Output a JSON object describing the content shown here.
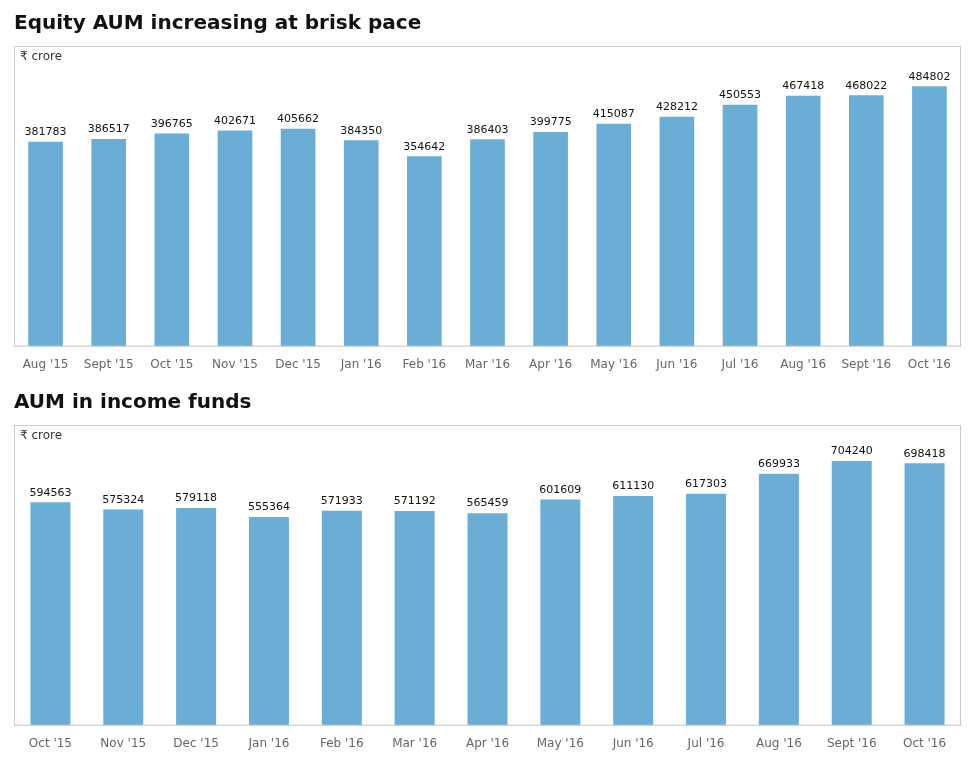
{
  "chart_data": [
    {
      "type": "bar",
      "title": "Equity AUM increasing at brisk pace",
      "ylabel": "₹ crore",
      "categories": [
        "Aug '15",
        "Sept '15",
        "Oct '15",
        "Nov '15",
        "Dec '15",
        "Jan '16",
        "Feb '16",
        "Mar '16",
        "Apr '16",
        "May '16",
        "Jun '16",
        "Jul '16",
        "Aug '16",
        "Sept '16",
        "Oct '16"
      ],
      "values": [
        381783,
        386517,
        396765,
        402671,
        405662,
        384350,
        354642,
        386403,
        399775,
        415087,
        428212,
        450553,
        467418,
        468022,
        484802
      ],
      "color": "#6aaed6",
      "ylim": [
        0,
        560000
      ],
      "grid": false,
      "data_labels": true,
      "tick_labels": "x"
    },
    {
      "type": "bar",
      "title": "AUM in income funds",
      "ylabel": "₹ crore",
      "categories": [
        "Oct '15",
        "Nov '15",
        "Dec '15",
        "Jan '16",
        "Feb '16",
        "Mar '16",
        "Apr '16",
        "May '16",
        "Jun '16",
        "Jul '16",
        "Aug '16",
        "Sept '16",
        "Oct '16"
      ],
      "values": [
        594563,
        575324,
        579118,
        555364,
        571933,
        571192,
        565459,
        601609,
        611130,
        617303,
        669933,
        704240,
        698418
      ],
      "color": "#6aaed6",
      "ylim": [
        0,
        800000
      ],
      "grid": false,
      "data_labels": true,
      "tick_labels": "x"
    }
  ]
}
